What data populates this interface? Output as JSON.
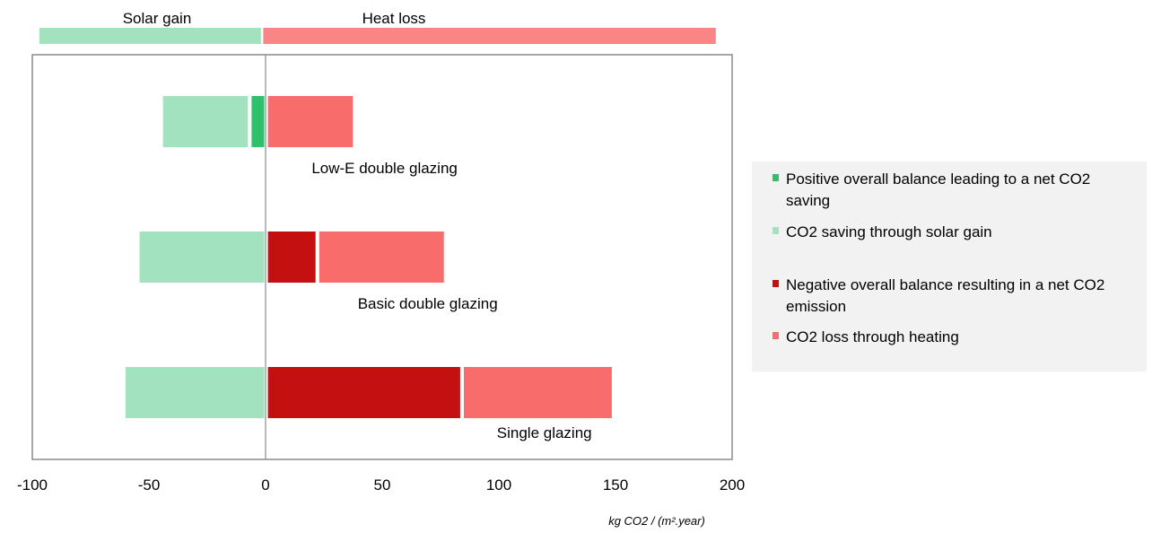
{
  "chart_data": {
    "type": "bar",
    "orientation": "horizontal-diverging",
    "xlabel": "kg CO2 / (m².year)",
    "ylabel": "",
    "xlim": [
      -100,
      200
    ],
    "xticks": [
      -100,
      -50,
      0,
      50,
      100,
      150,
      200
    ],
    "grid": false,
    "legend_position": "right",
    "top_bands": [
      {
        "label": "Solar gain",
        "range": [
          -97,
          -2
        ],
        "color": "#a3e2be"
      },
      {
        "label": "Heat loss",
        "range": [
          -1,
          193
        ],
        "color": "#fa8585"
      }
    ],
    "categories": [
      "Low-E double glazing",
      "Basic double glazing",
      "Single glazing"
    ],
    "series": [
      {
        "name": "CO2 saving through solar gain",
        "color": "#a3e2be",
        "segments": [
          [
            -44,
            -7
          ],
          [
            -54,
            0
          ],
          [
            -60,
            0
          ]
        ]
      },
      {
        "name": "Positive overall balance leading to a net CO2 saving",
        "color": "#2ec06a",
        "segments": [
          [
            -6,
            0
          ],
          null,
          null
        ]
      },
      {
        "name": "Negative overall balance resulting in a net CO2 emission",
        "color": "#c41010",
        "segments": [
          null,
          [
            1,
            22
          ],
          [
            1,
            84
          ]
        ]
      },
      {
        "name": "CO2 loss through heating",
        "color": "#f86c6c",
        "segments": [
          [
            1,
            38
          ],
          [
            23,
            77
          ],
          [
            85,
            149
          ]
        ]
      }
    ],
    "category_label_anchor": [
      [
        38,
        64
      ],
      [
        55,
        84
      ],
      [
        99,
        140
      ]
    ],
    "legend": [
      {
        "label_lines": [
          "Positive overall balance leading to a net CO2",
          "saving"
        ],
        "color": "#2ec06a"
      },
      {
        "label_lines": [
          "CO2 saving through solar gain"
        ],
        "color": "#a3e2be"
      },
      {
        "label_lines": [
          "Negative overall balance resulting in a net CO2",
          "emission"
        ],
        "color": "#c41010"
      },
      {
        "label_lines": [
          "CO2 loss through heating"
        ],
        "color": "#f86c6c"
      }
    ]
  }
}
